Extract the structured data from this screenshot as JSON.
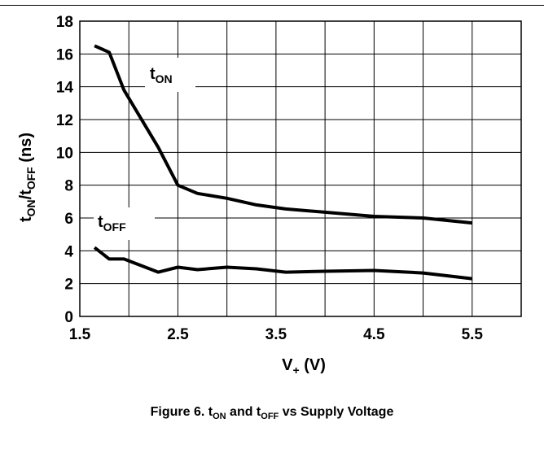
{
  "figure": {
    "caption_prefix": "Figure 6. t",
    "caption_sub1": "ON",
    "caption_mid": " and t",
    "caption_sub2": "OFF",
    "caption_suffix": " vs Supply Voltage"
  },
  "chart_data": {
    "type": "line",
    "title": "",
    "xlabel": {
      "base": "V",
      "sub": "+",
      "rest": " (V)"
    },
    "ylabel": {
      "base1": "t",
      "sub1": "ON",
      "mid": "/t",
      "sub2": "OFF",
      "rest": " (ns)"
    },
    "xlim": [
      1.5,
      6.0
    ],
    "ylim": [
      0,
      18
    ],
    "xticks": [
      1.5,
      2.5,
      3.5,
      4.5,
      5.5
    ],
    "xtick_labels": [
      "1.5",
      "2.5",
      "3.5",
      "4.5",
      "5.5"
    ],
    "yticks": [
      0,
      2,
      4,
      6,
      8,
      10,
      12,
      14,
      16,
      18
    ],
    "ytick_labels": [
      "0",
      "2",
      "4",
      "6",
      "8",
      "10",
      "12",
      "14",
      "16",
      "18"
    ],
    "grid": true,
    "series": [
      {
        "name": "tON",
        "label_base": "t",
        "label_sub": "ON",
        "x": [
          1.65,
          1.8,
          1.95,
          2.3,
          2.5,
          2.7,
          3.0,
          3.3,
          3.6,
          4.0,
          4.5,
          5.0,
          5.5
        ],
        "y": [
          16.5,
          16.1,
          13.8,
          10.3,
          8.0,
          7.5,
          7.2,
          6.8,
          6.55,
          6.35,
          6.1,
          6.0,
          5.7
        ]
      },
      {
        "name": "tOFF",
        "label_base": "t",
        "label_sub": "OFF",
        "x": [
          1.65,
          1.8,
          1.95,
          2.3,
          2.5,
          2.7,
          3.0,
          3.3,
          3.6,
          4.0,
          4.5,
          5.0,
          5.5
        ],
        "y": [
          4.2,
          3.5,
          3.5,
          2.7,
          3.0,
          2.85,
          3.0,
          2.9,
          2.7,
          2.75,
          2.8,
          2.65,
          2.3
        ]
      }
    ]
  }
}
